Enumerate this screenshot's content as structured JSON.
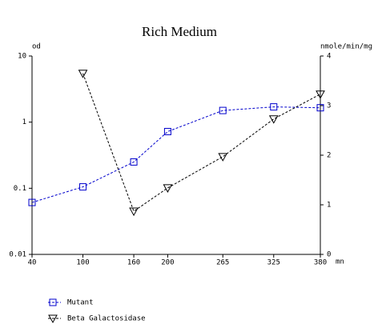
{
  "chart_data": {
    "type": "line",
    "title": "Rich Medium",
    "y_label": "od",
    "y2_label": "nmole/min/mg",
    "x_label": "mn",
    "xlim": [
      40,
      380
    ],
    "xticks": [
      40,
      100,
      160,
      200,
      265,
      325,
      380
    ],
    "ylim": [
      0.01,
      10
    ],
    "yticks": [
      0.01,
      0.1,
      1,
      10
    ],
    "y_log": true,
    "y2lim": [
      0,
      4
    ],
    "y2ticks": [
      0,
      1,
      2,
      3,
      4
    ],
    "series": [
      {
        "name": "Mutant",
        "color": "#0000cc",
        "marker": "square",
        "x": [
          40,
          100,
          160,
          200,
          265,
          325,
          380
        ],
        "values": [
          0.061,
          0.105,
          0.25,
          0.72,
          1.5,
          1.7,
          1.65
        ]
      },
      {
        "name": "Beta Galactosidase",
        "color": "#000000",
        "marker": "triangle",
        "axis": "y2",
        "x": [
          100,
          160,
          200,
          265,
          325,
          380
        ],
        "values": [
          3.65,
          0.87,
          1.34,
          1.97,
          2.73,
          3.23
        ]
      }
    ]
  }
}
